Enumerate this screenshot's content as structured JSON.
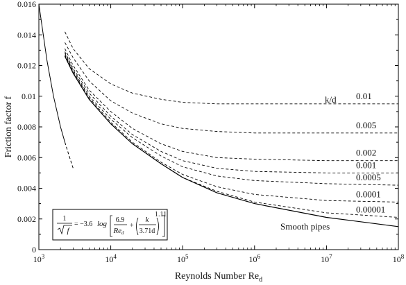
{
  "chart_data": {
    "type": "line",
    "xlabel": "Reynolds Number Re",
    "xlabel_sub": "d",
    "ylabel": "Friction factor f",
    "xscale": "log",
    "xlim": [
      1000,
      100000000
    ],
    "ylim": [
      0,
      0.016
    ],
    "x_ticks": [
      {
        "value": 1000,
        "base": "10",
        "exp": "3"
      },
      {
        "value": 10000,
        "base": "10",
        "exp": "4"
      },
      {
        "value": 100000,
        "base": "10",
        "exp": "5"
      },
      {
        "value": 1000000,
        "base": "10",
        "exp": "6"
      },
      {
        "value": 10000000,
        "base": "10",
        "exp": "7"
      },
      {
        "value": 100000000,
        "base": "10",
        "exp": "8"
      }
    ],
    "y_ticks": [
      {
        "value": 0,
        "label": "0"
      },
      {
        "value": 0.002,
        "label": "0.002"
      },
      {
        "value": 0.004,
        "label": "0.004"
      },
      {
        "value": 0.006,
        "label": "0.006"
      },
      {
        "value": 0.008,
        "label": "0.008"
      },
      {
        "value": 0.01,
        "label": "0.01"
      },
      {
        "value": 0.012,
        "label": "0.012"
      },
      {
        "value": 0.014,
        "label": "0.014"
      },
      {
        "value": 0.016,
        "label": "0.016"
      }
    ],
    "grid": false,
    "legend_header": "k/d",
    "laminar": {
      "solid": {
        "x": [
          1000,
          1300,
          1600,
          2000,
          2300
        ],
        "y": [
          0.016,
          0.0123,
          0.01,
          0.008,
          0.007
        ]
      },
      "dashed": {
        "x": [
          2300,
          2600,
          3000
        ],
        "y": [
          0.007,
          0.0062,
          0.0053
        ]
      }
    },
    "series": [
      {
        "name": "0.01",
        "style": "dashed",
        "x": [
          2300,
          3000,
          5000,
          10000,
          20000,
          50000,
          100000,
          300000,
          1000000,
          10000000,
          100000000
        ],
        "y": [
          0.0142,
          0.0131,
          0.0118,
          0.0108,
          0.0102,
          0.0098,
          0.0096,
          0.0095,
          0.0095,
          0.0095,
          0.0095
        ]
      },
      {
        "name": "0.005",
        "style": "dashed",
        "x": [
          2300,
          3000,
          5000,
          10000,
          20000,
          50000,
          100000,
          300000,
          1000000,
          10000000,
          100000000
        ],
        "y": [
          0.0135,
          0.0125,
          0.011,
          0.0097,
          0.0089,
          0.0082,
          0.0079,
          0.0077,
          0.0076,
          0.0076,
          0.0076
        ]
      },
      {
        "name": "0.002",
        "style": "dashed",
        "x": [
          2300,
          3000,
          5000,
          10000,
          20000,
          50000,
          100000,
          300000,
          1000000,
          10000000,
          100000000
        ],
        "y": [
          0.0131,
          0.012,
          0.0104,
          0.009,
          0.0079,
          0.0069,
          0.0064,
          0.006,
          0.0059,
          0.0058,
          0.0058
        ]
      },
      {
        "name": "0.001",
        "style": "dashed",
        "x": [
          2300,
          3000,
          5000,
          10000,
          20000,
          50000,
          100000,
          300000,
          1000000,
          10000000,
          100000000
        ],
        "y": [
          0.0129,
          0.0118,
          0.0102,
          0.0087,
          0.0075,
          0.0064,
          0.0058,
          0.0053,
          0.0051,
          0.005,
          0.005
        ]
      },
      {
        "name": "0.0005",
        "style": "dashed",
        "x": [
          2300,
          3000,
          5000,
          10000,
          20000,
          50000,
          100000,
          300000,
          1000000,
          10000000,
          100000000
        ],
        "y": [
          0.0128,
          0.0117,
          0.01,
          0.0085,
          0.0073,
          0.0061,
          0.0054,
          0.0048,
          0.0045,
          0.0043,
          0.0042
        ]
      },
      {
        "name": "0.0001",
        "style": "dashed",
        "x": [
          2300,
          3000,
          5000,
          10000,
          20000,
          50000,
          100000,
          300000,
          1000000,
          10000000,
          100000000
        ],
        "y": [
          0.0127,
          0.0116,
          0.0099,
          0.0083,
          0.007,
          0.0057,
          0.0049,
          0.0041,
          0.0036,
          0.0032,
          0.0031
        ]
      },
      {
        "name": "0.00001",
        "style": "dashed",
        "x": [
          2300,
          3000,
          5000,
          10000,
          20000,
          50000,
          100000,
          300000,
          1000000,
          10000000,
          100000000
        ],
        "y": [
          0.0126,
          0.0115,
          0.0098,
          0.0082,
          0.0069,
          0.0056,
          0.0047,
          0.0038,
          0.0031,
          0.0024,
          0.0021
        ]
      },
      {
        "name": "Smooth pipes",
        "style": "solid",
        "x": [
          2300,
          3000,
          5000,
          10000,
          20000,
          50000,
          100000,
          300000,
          1000000,
          10000000,
          100000000
        ],
        "y": [
          0.0126,
          0.0115,
          0.0098,
          0.0082,
          0.0069,
          0.0056,
          0.0047,
          0.0037,
          0.003,
          0.0021,
          0.0015
        ]
      }
    ],
    "equation": {
      "lhs_num": "1",
      "lhs_den": "f",
      "equals": "= −3.6",
      "log": "log",
      "term1_num": "6.9",
      "term1_den": "Re",
      "term1_den_sub": "d",
      "plus": "+",
      "term2_num": "k",
      "term2_den": "3.71d",
      "exponent": "1.11"
    }
  }
}
